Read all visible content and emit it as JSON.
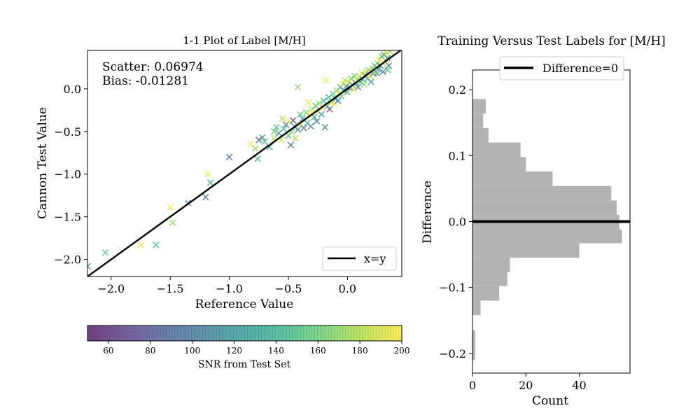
{
  "chart_data": [
    {
      "type": "scatter",
      "title": "1-1 Plot of Label [M/H]",
      "xlabel": "Reference Value",
      "ylabel": "Cannon Test Value",
      "xlim": [
        -2.2,
        0.46
      ],
      "ylim": [
        -2.2,
        0.45
      ],
      "xticks": [
        -2.0,
        -1.5,
        -1.0,
        -0.5,
        0.0
      ],
      "xtick_labels": [
        "−2.0",
        "−1.5",
        "−1.0",
        "−0.5",
        "0.0"
      ],
      "yticks": [
        -2.0,
        -1.5,
        -1.0,
        -0.5,
        0.0
      ],
      "ytick_labels": [
        "−2.0",
        "−1.5",
        "−1.0",
        "−0.5",
        "0.0"
      ],
      "annotations": [
        "Scatter: 0.06974",
        "Bias: -0.01281"
      ],
      "legend": {
        "entries": [
          "x=y"
        ],
        "placement": "lower-right"
      },
      "line": {
        "name": "x=y",
        "x": [
          -2.2,
          0.46
        ],
        "y": [
          -2.2,
          0.46
        ]
      },
      "marker": "x",
      "colormap": "viridis",
      "points": [
        {
          "x": -2.2,
          "y": -2.08,
          "snr": 110
        },
        {
          "x": -2.05,
          "y": -1.92,
          "snr": 150
        },
        {
          "x": -1.75,
          "y": -1.83,
          "snr": 195
        },
        {
          "x": -1.62,
          "y": -1.83,
          "snr": 140
        },
        {
          "x": -1.5,
          "y": -1.39,
          "snr": 195
        },
        {
          "x": -1.48,
          "y": -1.57,
          "snr": 170
        },
        {
          "x": -1.35,
          "y": -1.34,
          "snr": 100
        },
        {
          "x": -1.2,
          "y": -1.27,
          "snr": 90
        },
        {
          "x": -1.18,
          "y": -1.0,
          "snr": 195
        },
        {
          "x": -1.16,
          "y": -1.1,
          "snr": 140
        },
        {
          "x": -1.0,
          "y": -0.8,
          "snr": 100
        },
        {
          "x": -0.82,
          "y": -0.65,
          "snr": 195
        },
        {
          "x": -0.78,
          "y": -0.7,
          "snr": 170
        },
        {
          "x": -0.76,
          "y": -0.82,
          "snr": 140
        },
        {
          "x": -0.75,
          "y": -0.6,
          "snr": 80
        },
        {
          "x": -0.72,
          "y": -0.57,
          "snr": 120
        },
        {
          "x": -0.7,
          "y": -0.62,
          "snr": 150
        },
        {
          "x": -0.66,
          "y": -0.68,
          "snr": 130
        },
        {
          "x": -0.62,
          "y": -0.58,
          "snr": 180
        },
        {
          "x": -0.62,
          "y": -0.5,
          "snr": 160
        },
        {
          "x": -0.58,
          "y": -0.52,
          "snr": 110
        },
        {
          "x": -0.56,
          "y": -0.6,
          "snr": 190
        },
        {
          "x": -0.54,
          "y": -0.47,
          "snr": 140
        },
        {
          "x": -0.52,
          "y": -0.42,
          "snr": 90
        },
        {
          "x": -0.5,
          "y": -0.38,
          "snr": 195
        },
        {
          "x": -0.5,
          "y": -0.55,
          "snr": 150
        },
        {
          "x": -0.48,
          "y": -0.66,
          "snr": 100
        },
        {
          "x": -0.47,
          "y": -0.5,
          "snr": 170
        },
        {
          "x": -0.46,
          "y": -0.37,
          "snr": 75
        },
        {
          "x": -0.45,
          "y": -0.44,
          "snr": 130
        },
        {
          "x": -0.44,
          "y": -0.58,
          "snr": 180
        },
        {
          "x": -0.42,
          "y": -0.48,
          "snr": 110
        },
        {
          "x": -0.42,
          "y": 0.02,
          "snr": 170
        },
        {
          "x": -0.4,
          "y": -0.3,
          "snr": 150
        },
        {
          "x": -0.4,
          "y": -0.42,
          "snr": 195
        },
        {
          "x": -0.38,
          "y": -0.35,
          "snr": 120
        },
        {
          "x": -0.37,
          "y": -0.46,
          "snr": 90
        },
        {
          "x": -0.35,
          "y": -0.28,
          "snr": 160
        },
        {
          "x": -0.34,
          "y": -0.4,
          "snr": 140
        },
        {
          "x": -0.32,
          "y": -0.3,
          "snr": 195
        },
        {
          "x": -0.31,
          "y": -0.44,
          "snr": 110
        },
        {
          "x": -0.3,
          "y": -0.24,
          "snr": 180
        },
        {
          "x": -0.28,
          "y": -0.33,
          "snr": 130
        },
        {
          "x": -0.27,
          "y": -0.2,
          "snr": 150
        },
        {
          "x": -0.26,
          "y": -0.38,
          "snr": 100
        },
        {
          "x": -0.25,
          "y": -0.26,
          "snr": 195
        },
        {
          "x": -0.24,
          "y": -0.17,
          "snr": 170
        },
        {
          "x": -0.22,
          "y": -0.3,
          "snr": 120
        },
        {
          "x": -0.21,
          "y": -0.22,
          "snr": 190
        },
        {
          "x": -0.2,
          "y": -0.14,
          "snr": 140
        },
        {
          "x": -0.19,
          "y": -0.45,
          "snr": 110
        },
        {
          "x": -0.18,
          "y": 0.1,
          "snr": 195
        },
        {
          "x": -0.17,
          "y": -0.2,
          "snr": 160
        },
        {
          "x": -0.16,
          "y": -0.1,
          "snr": 130
        },
        {
          "x": -0.15,
          "y": -0.24,
          "snr": 80
        },
        {
          "x": -0.14,
          "y": -0.16,
          "snr": 180
        },
        {
          "x": -0.12,
          "y": -0.06,
          "snr": 150
        },
        {
          "x": -0.11,
          "y": -0.18,
          "snr": 195
        },
        {
          "x": -0.1,
          "y": -0.12,
          "snr": 120
        },
        {
          "x": -0.09,
          "y": -0.02,
          "snr": 170
        },
        {
          "x": -0.08,
          "y": -0.14,
          "snr": 100
        },
        {
          "x": -0.07,
          "y": -0.05,
          "snr": 190
        },
        {
          "x": -0.06,
          "y": 0.02,
          "snr": 140
        },
        {
          "x": -0.05,
          "y": -0.09,
          "snr": 160
        },
        {
          "x": -0.04,
          "y": 0.06,
          "snr": 195
        },
        {
          "x": -0.03,
          "y": -0.02,
          "snr": 110
        },
        {
          "x": -0.02,
          "y": 0.1,
          "snr": 180
        },
        {
          "x": -0.01,
          "y": 0.03,
          "snr": 130
        },
        {
          "x": 0.0,
          "y": -0.04,
          "snr": 150
        },
        {
          "x": 0.01,
          "y": 0.08,
          "snr": 195
        },
        {
          "x": 0.02,
          "y": 0.01,
          "snr": 90
        },
        {
          "x": 0.03,
          "y": 0.12,
          "snr": 170
        },
        {
          "x": 0.04,
          "y": 0.05,
          "snr": 140
        },
        {
          "x": 0.05,
          "y": -0.01,
          "snr": 190
        },
        {
          "x": 0.06,
          "y": 0.15,
          "snr": 160
        },
        {
          "x": 0.07,
          "y": 0.07,
          "snr": 120
        },
        {
          "x": 0.08,
          "y": 0.1,
          "snr": 195
        },
        {
          "x": 0.09,
          "y": 0.02,
          "snr": 100
        },
        {
          "x": 0.1,
          "y": 0.14,
          "snr": 180
        },
        {
          "x": 0.11,
          "y": 0.08,
          "snr": 150
        },
        {
          "x": 0.12,
          "y": 0.18,
          "snr": 195
        },
        {
          "x": 0.13,
          "y": 0.11,
          "snr": 130
        },
        {
          "x": 0.14,
          "y": 0.05,
          "snr": 170
        },
        {
          "x": 0.15,
          "y": 0.16,
          "snr": 110
        },
        {
          "x": 0.16,
          "y": 0.2,
          "snr": 190
        },
        {
          "x": 0.17,
          "y": 0.12,
          "snr": 140
        },
        {
          "x": 0.18,
          "y": 0.22,
          "snr": 160
        },
        {
          "x": 0.19,
          "y": 0.15,
          "snr": 195
        },
        {
          "x": 0.2,
          "y": 0.08,
          "snr": 120
        },
        {
          "x": 0.21,
          "y": 0.24,
          "snr": 180
        },
        {
          "x": 0.22,
          "y": 0.18,
          "snr": 100
        },
        {
          "x": 0.23,
          "y": 0.27,
          "snr": 150
        },
        {
          "x": 0.24,
          "y": 0.2,
          "snr": 195
        },
        {
          "x": 0.25,
          "y": 0.3,
          "snr": 170
        },
        {
          "x": 0.26,
          "y": 0.23,
          "snr": 130
        },
        {
          "x": 0.27,
          "y": 0.34,
          "snr": 195
        },
        {
          "x": 0.28,
          "y": 0.27,
          "snr": 110
        },
        {
          "x": 0.29,
          "y": 0.38,
          "snr": 160
        },
        {
          "x": 0.3,
          "y": 0.3,
          "snr": 190
        },
        {
          "x": 0.31,
          "y": 0.4,
          "snr": 140
        },
        {
          "x": 0.32,
          "y": 0.33,
          "snr": 180
        },
        {
          "x": 0.33,
          "y": 0.42,
          "snr": 195
        },
        {
          "x": 0.34,
          "y": 0.36,
          "snr": 120
        },
        {
          "x": 0.35,
          "y": 0.27,
          "snr": 100
        },
        {
          "x": 0.36,
          "y": 0.44,
          "snr": 170
        },
        {
          "x": 0.34,
          "y": 0.22,
          "snr": 150
        },
        {
          "x": 0.3,
          "y": 0.2,
          "snr": 90
        },
        {
          "x": 0.25,
          "y": 0.18,
          "snr": 140
        },
        {
          "x": -0.33,
          "y": -0.16,
          "snr": 195
        },
        {
          "x": -0.6,
          "y": -0.45,
          "snr": 150
        },
        {
          "x": -0.55,
          "y": -0.35,
          "snr": 180
        }
      ]
    },
    {
      "type": "colorbar",
      "label": "SNR from Test Set",
      "range": [
        50,
        200
      ],
      "ticks": [
        60,
        80,
        100,
        120,
        140,
        160,
        180,
        200
      ],
      "tick_labels": [
        "60",
        "80",
        "100",
        "120",
        "140",
        "160",
        "180",
        "200"
      ],
      "colormap": "viridis"
    },
    {
      "type": "bar",
      "orientation": "horizontal",
      "title": "Training Versus Test Labels for [M/H]",
      "xlabel": "Count",
      "ylabel": "Difference",
      "xlim": [
        0,
        59
      ],
      "ylim": [
        -0.23,
        0.23
      ],
      "xticks": [
        0,
        20,
        40
      ],
      "xtick_labels": [
        "0",
        "20",
        "40"
      ],
      "yticks": [
        -0.2,
        -0.1,
        0.0,
        0.1,
        0.2
      ],
      "ytick_labels": [
        "−0.2",
        "−0.1",
        "0.0",
        "0.1",
        "0.2"
      ],
      "legend": {
        "entries": [
          "Difference=0"
        ],
        "placement": "top-right"
      },
      "hline": {
        "name": "Difference=0",
        "y": 0.0
      },
      "bar_color": "#b3b3b3",
      "bins": [
        {
          "y0": -0.21,
          "y1": -0.165,
          "count": 1
        },
        {
          "y0": -0.165,
          "y1": -0.142,
          "count": 0
        },
        {
          "y0": -0.142,
          "y1": -0.12,
          "count": 3
        },
        {
          "y0": -0.12,
          "y1": -0.098,
          "count": 10
        },
        {
          "y0": -0.098,
          "y1": -0.077,
          "count": 13
        },
        {
          "y0": -0.077,
          "y1": -0.055,
          "count": 14
        },
        {
          "y0": -0.055,
          "y1": -0.033,
          "count": 40
        },
        {
          "y0": -0.033,
          "y1": -0.012,
          "count": 56
        },
        {
          "y0": -0.012,
          "y1": 0.01,
          "count": 55
        },
        {
          "y0": 0.01,
          "y1": 0.032,
          "count": 54
        },
        {
          "y0": 0.032,
          "y1": 0.054,
          "count": 52
        },
        {
          "y0": 0.054,
          "y1": 0.076,
          "count": 30
        },
        {
          "y0": 0.076,
          "y1": 0.098,
          "count": 20
        },
        {
          "y0": 0.098,
          "y1": 0.12,
          "count": 18
        },
        {
          "y0": 0.12,
          "y1": 0.142,
          "count": 6
        },
        {
          "y0": 0.142,
          "y1": 0.164,
          "count": 4
        },
        {
          "y0": 0.164,
          "y1": 0.186,
          "count": 5
        }
      ]
    }
  ]
}
